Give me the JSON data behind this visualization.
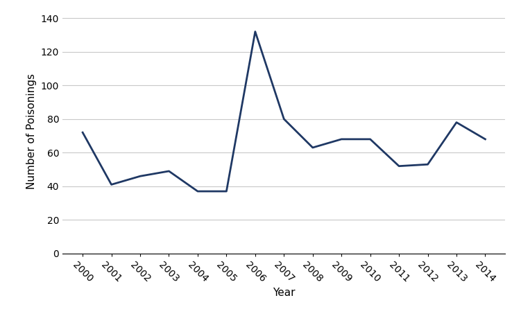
{
  "years": [
    2000,
    2001,
    2002,
    2003,
    2004,
    2005,
    2006,
    2007,
    2008,
    2009,
    2010,
    2011,
    2012,
    2013,
    2014
  ],
  "values": [
    72,
    41,
    46,
    49,
    37,
    37,
    132,
    80,
    63,
    68,
    68,
    52,
    53,
    78,
    68
  ],
  "line_color": "#1F3864",
  "line_width": 2.0,
  "xlabel": "Year",
  "ylabel": "Number of Poisonings",
  "xlim": [
    1999.3,
    2014.7
  ],
  "ylim": [
    0,
    145
  ],
  "yticks": [
    0,
    20,
    40,
    60,
    80,
    100,
    120,
    140
  ],
  "xtick_labels": [
    "2000",
    "2001",
    "2002",
    "2003",
    "2004",
    "2005",
    "2006",
    "2007",
    "2008",
    "2009",
    "2010",
    "2011",
    "2012",
    "2013",
    "2014"
  ],
  "grid_color": "#c8c8c8",
  "background_color": "#ffffff",
  "xlabel_fontsize": 11,
  "ylabel_fontsize": 11,
  "tick_fontsize": 10
}
